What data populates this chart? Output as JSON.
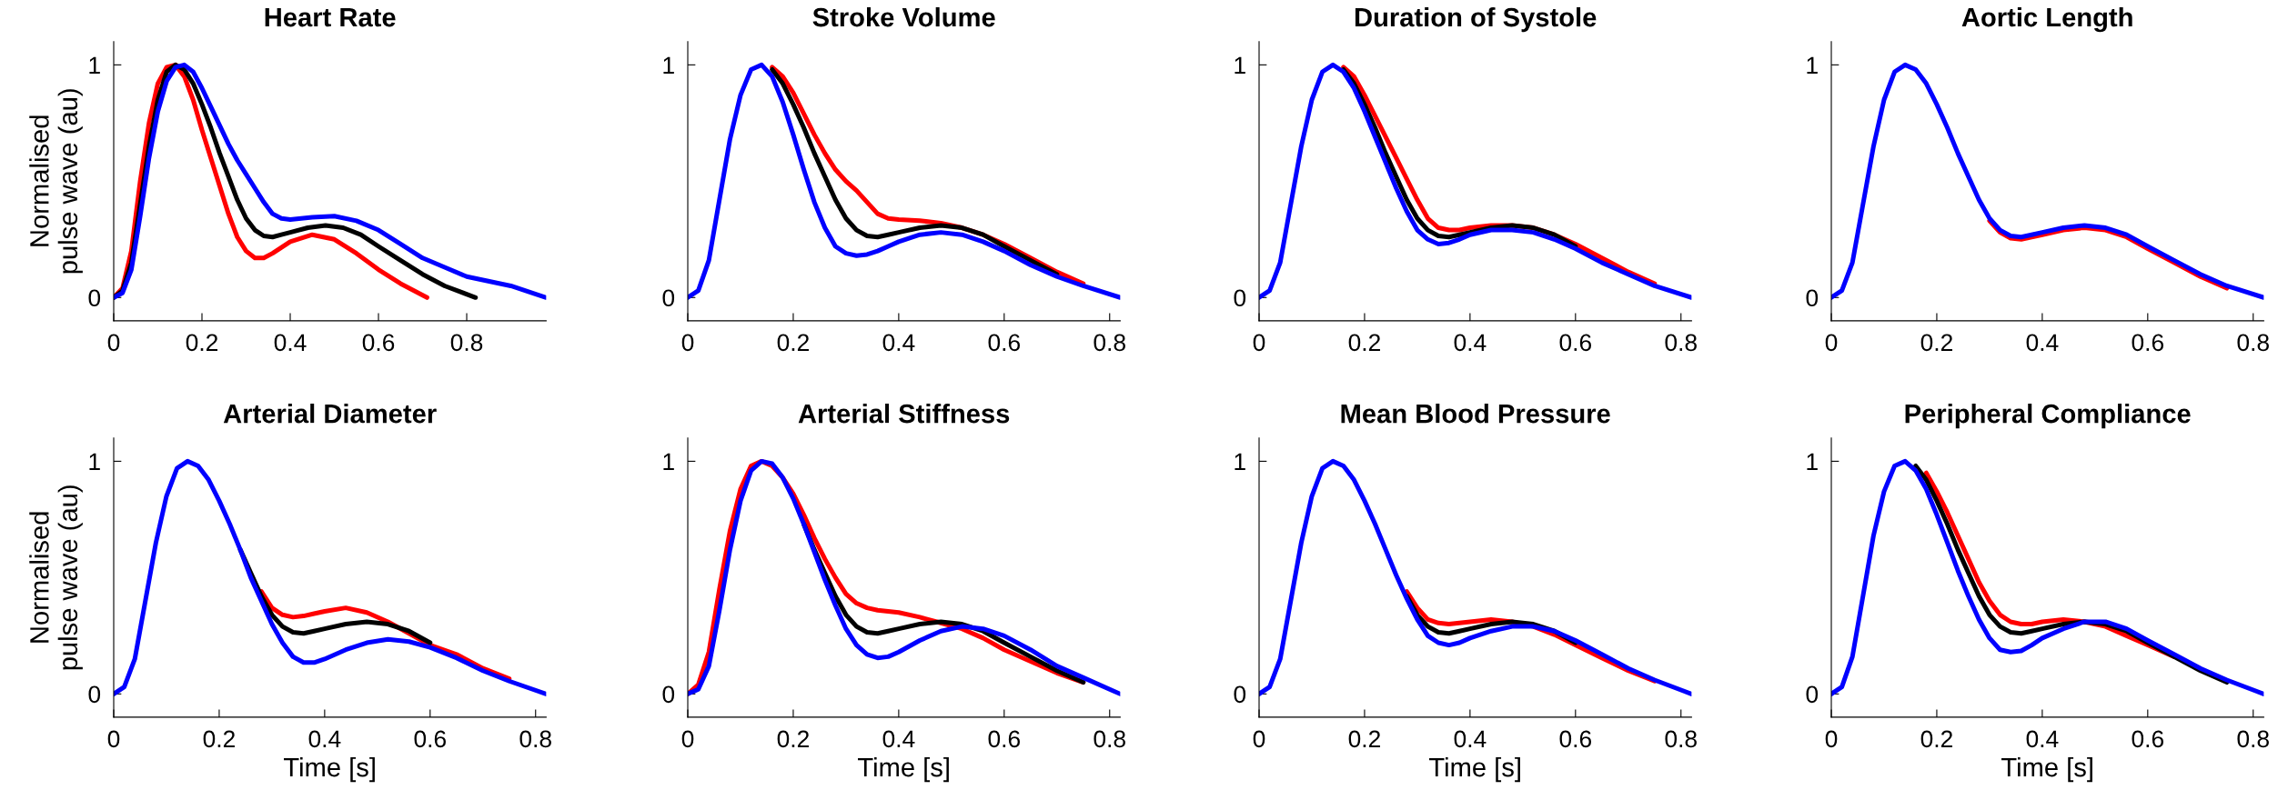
{
  "chart_data": [
    {
      "type": "line",
      "title": "Heart Rate",
      "ylabel": "Normalised\npulse wave (au)",
      "xlim": [
        0,
        0.98
      ],
      "ylim": [
        -0.1,
        1.1
      ],
      "xticks": [
        0,
        0.2,
        0.4,
        0.6,
        0.8
      ],
      "yticks": [
        0,
        1
      ],
      "grid": false,
      "legend": false,
      "series": [
        {
          "color": "#ff0000",
          "x": [
            0,
            0.02,
            0.04,
            0.06,
            0.08,
            0.1,
            0.12,
            0.14,
            0.16,
            0.18,
            0.2,
            0.22,
            0.24,
            0.26,
            0.28,
            0.3,
            0.32,
            0.34,
            0.36,
            0.4,
            0.45,
            0.5,
            0.55,
            0.6,
            0.65,
            0.71
          ],
          "values": [
            0,
            0.04,
            0.2,
            0.5,
            0.75,
            0.92,
            0.99,
            1,
            0.95,
            0.85,
            0.72,
            0.6,
            0.48,
            0.36,
            0.26,
            0.2,
            0.17,
            0.17,
            0.19,
            0.24,
            0.27,
            0.25,
            0.19,
            0.12,
            0.06,
            0
          ]
        },
        {
          "color": "#000000",
          "x": [
            0,
            0.02,
            0.04,
            0.06,
            0.08,
            0.1,
            0.12,
            0.14,
            0.16,
            0.18,
            0.2,
            0.22,
            0.24,
            0.26,
            0.28,
            0.3,
            0.32,
            0.34,
            0.36,
            0.38,
            0.4,
            0.44,
            0.48,
            0.52,
            0.56,
            0.6,
            0.65,
            0.7,
            0.75,
            0.82
          ],
          "values": [
            0,
            0.03,
            0.15,
            0.4,
            0.65,
            0.85,
            0.97,
            1,
            0.98,
            0.92,
            0.83,
            0.73,
            0.62,
            0.52,
            0.42,
            0.34,
            0.29,
            0.265,
            0.26,
            0.27,
            0.28,
            0.3,
            0.31,
            0.3,
            0.27,
            0.22,
            0.16,
            0.1,
            0.05,
            0
          ]
        },
        {
          "color": "#0000ff",
          "x": [
            0,
            0.02,
            0.04,
            0.06,
            0.08,
            0.1,
            0.12,
            0.14,
            0.16,
            0.18,
            0.2,
            0.22,
            0.24,
            0.26,
            0.28,
            0.3,
            0.32,
            0.34,
            0.36,
            0.38,
            0.4,
            0.45,
            0.5,
            0.55,
            0.6,
            0.65,
            0.7,
            0.75,
            0.8,
            0.9,
            0.98
          ],
          "values": [
            0,
            0.02,
            0.12,
            0.35,
            0.6,
            0.8,
            0.93,
            0.99,
            1,
            0.97,
            0.9,
            0.82,
            0.74,
            0.66,
            0.59,
            0.53,
            0.47,
            0.41,
            0.36,
            0.34,
            0.335,
            0.345,
            0.35,
            0.33,
            0.29,
            0.23,
            0.17,
            0.13,
            0.09,
            0.05,
            0
          ]
        }
      ]
    },
    {
      "type": "line",
      "title": "Stroke Volume",
      "xlim": [
        0,
        0.82
      ],
      "ylim": [
        -0.1,
        1.1
      ],
      "xticks": [
        0,
        0.2,
        0.4,
        0.6,
        0.8
      ],
      "yticks": [
        0,
        1
      ],
      "grid": false,
      "legend": false,
      "x": [
        0,
        0.02,
        0.04,
        0.06,
        0.08,
        0.1,
        0.12,
        0.14,
        0.16,
        0.18,
        0.2,
        0.22,
        0.24,
        0.26,
        0.28,
        0.3,
        0.32,
        0.34,
        0.36,
        0.38,
        0.4,
        0.44,
        0.48,
        0.52,
        0.56,
        0.6,
        0.65,
        0.7,
        0.75,
        0.82
      ],
      "series": [
        {
          "color": "#ff0000",
          "values": [
            null,
            null,
            null,
            null,
            null,
            null,
            null,
            null,
            0.99,
            0.95,
            0.88,
            0.79,
            0.7,
            0.62,
            0.55,
            0.5,
            0.46,
            0.41,
            0.36,
            0.34,
            0.335,
            0.33,
            0.32,
            0.3,
            0.27,
            0.23,
            0.17,
            0.11,
            0.06,
            null
          ]
        },
        {
          "color": "#000000",
          "values": [
            null,
            null,
            null,
            null,
            null,
            null,
            null,
            null,
            0.98,
            0.92,
            0.83,
            0.73,
            0.62,
            0.52,
            0.42,
            0.34,
            0.29,
            0.265,
            0.26,
            0.27,
            0.28,
            0.3,
            0.31,
            0.3,
            0.27,
            0.22,
            0.16,
            0.1,
            null,
            null
          ]
        },
        {
          "color": "#0000ff",
          "values": [
            0,
            0.03,
            0.16,
            0.42,
            0.68,
            0.87,
            0.98,
            1,
            0.95,
            0.84,
            0.7,
            0.55,
            0.41,
            0.3,
            0.22,
            0.19,
            0.18,
            0.185,
            0.2,
            0.22,
            0.24,
            0.27,
            0.28,
            0.27,
            0.24,
            0.2,
            0.14,
            0.09,
            0.05,
            0
          ]
        }
      ]
    },
    {
      "type": "line",
      "title": "Duration of Systole",
      "xlim": [
        0,
        0.82
      ],
      "ylim": [
        -0.1,
        1.1
      ],
      "xticks": [
        0,
        0.2,
        0.4,
        0.6,
        0.8
      ],
      "yticks": [
        0,
        1
      ],
      "grid": false,
      "legend": false,
      "x": [
        0,
        0.02,
        0.04,
        0.06,
        0.08,
        0.1,
        0.12,
        0.14,
        0.16,
        0.18,
        0.2,
        0.22,
        0.24,
        0.26,
        0.28,
        0.3,
        0.32,
        0.34,
        0.36,
        0.38,
        0.4,
        0.44,
        0.48,
        0.52,
        0.56,
        0.6,
        0.65,
        0.7,
        0.75,
        0.82
      ],
      "series": [
        {
          "color": "#ff0000",
          "values": [
            null,
            null,
            null,
            null,
            null,
            null,
            null,
            null,
            0.99,
            0.95,
            0.87,
            0.78,
            0.69,
            0.6,
            0.51,
            0.42,
            0.34,
            0.3,
            0.29,
            0.29,
            0.3,
            0.31,
            0.31,
            0.3,
            0.27,
            0.23,
            0.17,
            0.11,
            0.06,
            null
          ]
        },
        {
          "color": "#000000",
          "values": [
            null,
            null,
            null,
            null,
            null,
            null,
            null,
            null,
            0.98,
            0.92,
            0.83,
            0.73,
            0.62,
            0.52,
            0.42,
            0.34,
            0.29,
            0.265,
            0.26,
            0.27,
            0.28,
            0.3,
            0.31,
            0.3,
            0.27,
            0.22,
            null,
            null,
            null,
            null
          ]
        },
        {
          "color": "#0000ff",
          "values": [
            0,
            0.03,
            0.15,
            0.4,
            0.65,
            0.85,
            0.97,
            1,
            0.97,
            0.9,
            0.8,
            0.69,
            0.58,
            0.47,
            0.37,
            0.29,
            0.25,
            0.23,
            0.235,
            0.25,
            0.27,
            0.29,
            0.29,
            0.28,
            0.25,
            0.21,
            0.15,
            0.1,
            0.05,
            0
          ]
        }
      ]
    },
    {
      "type": "line",
      "title": "Aortic Length",
      "xlim": [
        0,
        0.82
      ],
      "ylim": [
        -0.1,
        1.1
      ],
      "xticks": [
        0,
        0.2,
        0.4,
        0.6,
        0.8
      ],
      "yticks": [
        0,
        1
      ],
      "grid": false,
      "legend": false,
      "x": [
        0,
        0.02,
        0.04,
        0.06,
        0.08,
        0.1,
        0.12,
        0.14,
        0.16,
        0.18,
        0.2,
        0.22,
        0.24,
        0.26,
        0.28,
        0.3,
        0.32,
        0.34,
        0.36,
        0.38,
        0.4,
        0.44,
        0.48,
        0.52,
        0.56,
        0.6,
        0.65,
        0.7,
        0.75,
        0.82
      ],
      "series": [
        {
          "color": "#ff0000",
          "values": [
            null,
            null,
            null,
            null,
            null,
            null,
            null,
            null,
            null,
            null,
            null,
            null,
            null,
            null,
            null,
            0.33,
            0.28,
            0.255,
            0.25,
            0.26,
            0.27,
            0.29,
            0.3,
            0.29,
            0.26,
            0.21,
            0.15,
            0.09,
            0.04,
            null
          ]
        },
        {
          "color": "#0000ff",
          "values": [
            0,
            0.03,
            0.15,
            0.4,
            0.65,
            0.85,
            0.97,
            1,
            0.98,
            0.92,
            0.83,
            0.73,
            0.62,
            0.52,
            0.42,
            0.34,
            0.29,
            0.265,
            0.26,
            0.27,
            0.28,
            0.3,
            0.31,
            0.3,
            0.27,
            0.22,
            0.16,
            0.1,
            0.05,
            0
          ]
        }
      ]
    },
    {
      "type": "line",
      "title": "Arterial Diameter",
      "ylabel": "Normalised\npulse wave (au)",
      "xlabel": "Time [s]",
      "xlim": [
        0,
        0.82
      ],
      "ylim": [
        -0.1,
        1.1
      ],
      "xticks": [
        0,
        0.2,
        0.4,
        0.6,
        0.8
      ],
      "yticks": [
        0,
        1
      ],
      "grid": false,
      "legend": false,
      "x": [
        0,
        0.02,
        0.04,
        0.06,
        0.08,
        0.1,
        0.12,
        0.14,
        0.16,
        0.18,
        0.2,
        0.22,
        0.24,
        0.26,
        0.28,
        0.3,
        0.32,
        0.34,
        0.36,
        0.38,
        0.4,
        0.44,
        0.48,
        0.52,
        0.56,
        0.6,
        0.65,
        0.7,
        0.75,
        0.82
      ],
      "series": [
        {
          "color": "#ff0000",
          "values": [
            null,
            null,
            null,
            null,
            null,
            null,
            null,
            null,
            null,
            null,
            null,
            null,
            null,
            null,
            0.44,
            0.37,
            0.34,
            0.33,
            0.335,
            0.345,
            0.355,
            0.37,
            0.35,
            0.31,
            0.26,
            0.21,
            0.17,
            0.11,
            0.065,
            null
          ]
        },
        {
          "color": "#000000",
          "values": [
            null,
            null,
            null,
            null,
            null,
            null,
            null,
            null,
            null,
            null,
            null,
            null,
            0.62,
            0.52,
            0.42,
            0.34,
            0.29,
            0.265,
            0.26,
            0.27,
            0.28,
            0.3,
            0.31,
            0.3,
            0.27,
            0.22,
            null,
            null,
            null,
            null
          ]
        },
        {
          "color": "#0000ff",
          "values": [
            0,
            0.03,
            0.15,
            0.4,
            0.65,
            0.85,
            0.97,
            1,
            0.98,
            0.92,
            0.83,
            0.73,
            0.62,
            0.5,
            0.4,
            0.3,
            0.22,
            0.16,
            0.135,
            0.135,
            0.15,
            0.19,
            0.22,
            0.235,
            0.225,
            0.2,
            0.155,
            0.1,
            0.055,
            0
          ]
        }
      ]
    },
    {
      "type": "line",
      "title": "Arterial Stiffness",
      "xlabel": "Time [s]",
      "xlim": [
        0,
        0.82
      ],
      "ylim": [
        -0.1,
        1.1
      ],
      "xticks": [
        0,
        0.2,
        0.4,
        0.6,
        0.8
      ],
      "yticks": [
        0,
        1
      ],
      "grid": false,
      "legend": false,
      "x": [
        0,
        0.02,
        0.04,
        0.06,
        0.08,
        0.1,
        0.12,
        0.14,
        0.16,
        0.18,
        0.2,
        0.22,
        0.24,
        0.26,
        0.28,
        0.3,
        0.32,
        0.34,
        0.36,
        0.38,
        0.4,
        0.44,
        0.48,
        0.52,
        0.56,
        0.6,
        0.65,
        0.7,
        0.75,
        0.82
      ],
      "series": [
        {
          "color": "#ff0000",
          "values": [
            0,
            0.04,
            0.18,
            0.45,
            0.7,
            0.88,
            0.98,
            1,
            0.98,
            0.93,
            0.86,
            0.77,
            0.67,
            0.58,
            0.5,
            0.43,
            0.39,
            0.37,
            0.36,
            0.355,
            0.35,
            0.33,
            0.305,
            0.28,
            0.24,
            0.19,
            0.14,
            0.09,
            0.05,
            null
          ]
        },
        {
          "color": "#000000",
          "values": [
            null,
            null,
            null,
            null,
            null,
            null,
            null,
            null,
            null,
            null,
            null,
            0.73,
            0.62,
            0.52,
            0.42,
            0.34,
            0.29,
            0.265,
            0.26,
            0.27,
            0.28,
            0.3,
            0.31,
            0.3,
            0.27,
            0.22,
            0.16,
            0.1,
            0.05,
            null
          ]
        },
        {
          "color": "#0000ff",
          "values": [
            0,
            0.02,
            0.12,
            0.36,
            0.62,
            0.83,
            0.96,
            1,
            0.99,
            0.93,
            0.84,
            0.73,
            0.61,
            0.49,
            0.38,
            0.28,
            0.21,
            0.17,
            0.155,
            0.16,
            0.18,
            0.23,
            0.27,
            0.29,
            0.28,
            0.25,
            0.19,
            0.12,
            0.07,
            0
          ]
        }
      ]
    },
    {
      "type": "line",
      "title": "Mean Blood Pressure",
      "xlabel": "Time [s]",
      "xlim": [
        0,
        0.82
      ],
      "ylim": [
        -0.1,
        1.1
      ],
      "xticks": [
        0,
        0.2,
        0.4,
        0.6,
        0.8
      ],
      "yticks": [
        0,
        1
      ],
      "grid": false,
      "legend": false,
      "x": [
        0,
        0.02,
        0.04,
        0.06,
        0.08,
        0.1,
        0.12,
        0.14,
        0.16,
        0.18,
        0.2,
        0.22,
        0.24,
        0.26,
        0.28,
        0.3,
        0.32,
        0.34,
        0.36,
        0.38,
        0.4,
        0.44,
        0.48,
        0.52,
        0.56,
        0.6,
        0.65,
        0.7,
        0.75,
        0.82
      ],
      "series": [
        {
          "color": "#ff0000",
          "values": [
            null,
            null,
            null,
            null,
            null,
            null,
            null,
            null,
            null,
            null,
            null,
            null,
            null,
            null,
            0.44,
            0.37,
            0.32,
            0.305,
            0.3,
            0.305,
            0.31,
            0.32,
            0.31,
            0.29,
            0.255,
            0.21,
            0.155,
            0.1,
            0.055,
            null
          ]
        },
        {
          "color": "#000000",
          "values": [
            null,
            null,
            null,
            null,
            null,
            null,
            null,
            null,
            null,
            null,
            null,
            null,
            null,
            null,
            0.42,
            0.34,
            0.29,
            0.265,
            0.26,
            0.27,
            0.28,
            0.3,
            0.31,
            0.3,
            0.27,
            0.22,
            null,
            null,
            null,
            null
          ]
        },
        {
          "color": "#0000ff",
          "values": [
            0,
            0.03,
            0.15,
            0.4,
            0.65,
            0.85,
            0.97,
            1,
            0.98,
            0.92,
            0.83,
            0.73,
            0.62,
            0.51,
            0.41,
            0.32,
            0.25,
            0.22,
            0.21,
            0.22,
            0.24,
            0.27,
            0.29,
            0.29,
            0.27,
            0.23,
            0.17,
            0.11,
            0.06,
            0
          ]
        }
      ]
    },
    {
      "type": "line",
      "title": "Peripheral Compliance",
      "xlabel": "Time [s]",
      "xlim": [
        0,
        0.82
      ],
      "ylim": [
        -0.1,
        1.1
      ],
      "xticks": [
        0,
        0.2,
        0.4,
        0.6,
        0.8
      ],
      "yticks": [
        0,
        1
      ],
      "grid": false,
      "legend": false,
      "x": [
        0,
        0.02,
        0.04,
        0.06,
        0.08,
        0.1,
        0.12,
        0.14,
        0.16,
        0.18,
        0.2,
        0.22,
        0.24,
        0.26,
        0.28,
        0.3,
        0.32,
        0.34,
        0.36,
        0.38,
        0.4,
        0.44,
        0.48,
        0.52,
        0.56,
        0.6,
        0.65,
        0.7,
        0.75,
        0.82
      ],
      "series": [
        {
          "color": "#ff0000",
          "values": [
            null,
            null,
            null,
            null,
            null,
            null,
            null,
            null,
            null,
            0.95,
            0.87,
            0.78,
            0.68,
            0.58,
            0.48,
            0.4,
            0.34,
            0.31,
            0.3,
            0.3,
            0.31,
            0.32,
            0.31,
            0.29,
            0.25,
            0.21,
            0.16,
            null,
            null,
            null
          ]
        },
        {
          "color": "#000000",
          "values": [
            null,
            null,
            null,
            null,
            null,
            null,
            null,
            null,
            0.98,
            0.92,
            0.83,
            0.73,
            0.62,
            0.52,
            0.42,
            0.34,
            0.29,
            0.265,
            0.26,
            0.27,
            0.28,
            0.3,
            0.31,
            0.3,
            0.27,
            0.22,
            0.16,
            0.1,
            0.05,
            null
          ]
        },
        {
          "color": "#0000ff",
          "values": [
            0,
            0.03,
            0.16,
            0.42,
            0.68,
            0.87,
            0.98,
            1,
            0.96,
            0.88,
            0.77,
            0.65,
            0.53,
            0.42,
            0.32,
            0.24,
            0.19,
            0.18,
            0.185,
            0.21,
            0.24,
            0.28,
            0.31,
            0.31,
            0.28,
            0.23,
            0.17,
            0.11,
            0.06,
            0
          ]
        }
      ]
    }
  ]
}
